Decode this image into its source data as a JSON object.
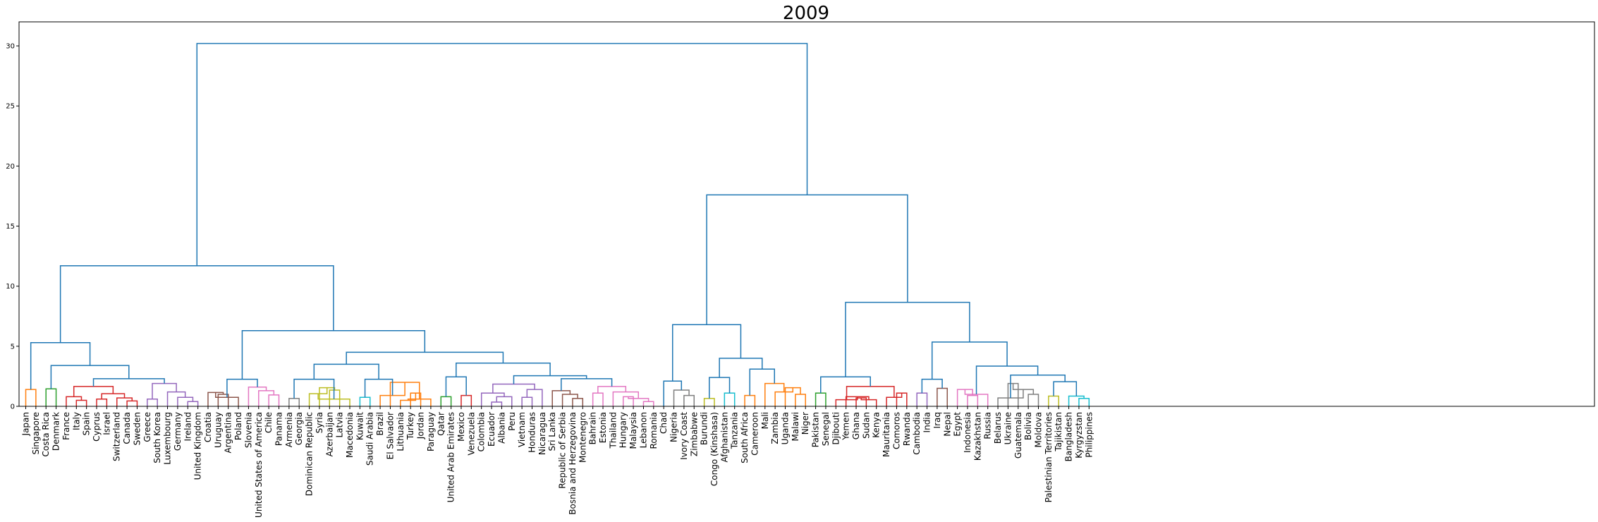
{
  "chart_data": {
    "type": "dendrogram",
    "title": "2009",
    "xlabel": "",
    "ylabel": "",
    "ylim": [
      0,
      32
    ],
    "yticks": [
      0,
      5,
      10,
      15,
      20,
      25,
      30
    ],
    "grid": false,
    "legend": "none",
    "leaves": [
      "Japan",
      "Singapore",
      "Costa Rica",
      "Denmark",
      "France",
      "Italy",
      "Spain",
      "Cyprus",
      "Israel",
      "Switzerland",
      "Canada",
      "Sweden",
      "Greece",
      "South Korea",
      "Luxembourg",
      "Germany",
      "Ireland",
      "United Kingdom",
      "Croatia",
      "Uruguay",
      "Argentina",
      "Poland",
      "Slovenia",
      "United States of America",
      "Chile",
      "Panama",
      "Armenia",
      "Georgia",
      "Dominican Republic",
      "Syria",
      "Azerbaijan",
      "Latvia",
      "Macedonia",
      "Kuwait",
      "Saudi Arabia",
      "Brazil",
      "El Salvador",
      "Lithuania",
      "Turkey",
      "Jordan",
      "Paraguay",
      "Qatar",
      "United Arab Emirates",
      "Mexico",
      "Venezuela",
      "Colombia",
      "Ecuador",
      "Albania",
      "Peru",
      "Vietnam",
      "Honduras",
      "Nicaragua",
      "Sri Lanka",
      "Republic of Serbia",
      "Bosnia and Herzegovina",
      "Montenegro",
      "Bahrain",
      "Estonia",
      "Thailand",
      "Hungary",
      "Malaysia",
      "Lebanon",
      "Romania",
      "Chad",
      "Nigeria",
      "Ivory Coast",
      "Zimbabwe",
      "Burundi",
      "Congo (Kinshasa)",
      "Afghanistan",
      "Tanzania",
      "South Africa",
      "Cameroon",
      "Mali",
      "Zambia",
      "Uganda",
      "Malawi",
      "Niger",
      "Pakistan",
      "Senegal",
      "Djibouti",
      "Yemen",
      "Ghana",
      "Sudan",
      "Kenya",
      "Mauritania",
      "Comoros",
      "Rwanda",
      "Cambodia",
      "India",
      "Iraq",
      "Nepal",
      "Egypt",
      "Indonesia",
      "Kazakhstan",
      "Russia",
      "Belarus",
      "Ukraine",
      "Guatemala",
      "Bolivia",
      "Moldova",
      "Palestinian Territories",
      "Tajikistan",
      "Bangladesh",
      "Kyrgyzstan",
      "Philippines"
    ],
    "colors": {
      "C0": "#1f77b4",
      "C1": "#ff7f0e",
      "C2": "#2ca02c",
      "C3": "#d62728",
      "C4": "#9467bd",
      "C5": "#8c564b",
      "C6": "#e377c2",
      "C7": "#7f7f7f",
      "C8": "#bcbd22",
      "C9": "#17becf"
    },
    "merges": [
      {
        "l": [
          "leaf",
          0
        ],
        "r": [
          "leaf",
          1
        ],
        "h": 1.4,
        "c": "C1"
      },
      {
        "l": [
          "leaf",
          2
        ],
        "r": [
          "leaf",
          3
        ],
        "h": 1.45,
        "c": "C2"
      },
      {
        "l": [
          "leaf",
          5
        ],
        "r": [
          "leaf",
          6
        ],
        "h": 0.5,
        "c": "C3"
      },
      {
        "l": [
          "leaf",
          4
        ],
        "r": [
          "m",
          2
        ],
        "h": 0.8,
        "c": "C3"
      },
      {
        "l": [
          "leaf",
          7
        ],
        "r": [
          "leaf",
          8
        ],
        "h": 0.6,
        "c": "C3"
      },
      {
        "l": [
          "leaf",
          10
        ],
        "r": [
          "leaf",
          11
        ],
        "h": 0.45,
        "c": "C3"
      },
      {
        "l": [
          "leaf",
          9
        ],
        "r": [
          "m",
          5
        ],
        "h": 0.7,
        "c": "C3"
      },
      {
        "l": [
          "m",
          4
        ],
        "r": [
          "m",
          6
        ],
        "h": 1.05,
        "c": "C3"
      },
      {
        "l": [
          "m",
          3
        ],
        "r": [
          "m",
          7
        ],
        "h": 1.65,
        "c": "C3"
      },
      {
        "l": [
          "leaf",
          12
        ],
        "r": [
          "leaf",
          13
        ],
        "h": 0.6,
        "c": "C4"
      },
      {
        "l": [
          "leaf",
          16
        ],
        "r": [
          "leaf",
          17
        ],
        "h": 0.4,
        "c": "C4"
      },
      {
        "l": [
          "leaf",
          15
        ],
        "r": [
          "m",
          10
        ],
        "h": 0.75,
        "c": "C4"
      },
      {
        "l": [
          "leaf",
          14
        ],
        "r": [
          "m",
          11
        ],
        "h": 1.2,
        "c": "C4"
      },
      {
        "l": [
          "m",
          9
        ],
        "r": [
          "m",
          12
        ],
        "h": 1.9,
        "c": "C4"
      },
      {
        "l": [
          "m",
          8
        ],
        "r": [
          "m",
          13
        ],
        "h": 2.3,
        "c": "C0"
      },
      {
        "l": [
          "m",
          1
        ],
        "r": [
          "m",
          14
        ],
        "h": 3.4,
        "c": "C0"
      },
      {
        "l": [
          "m",
          0
        ],
        "r": [
          "m",
          15
        ],
        "h": 5.3,
        "c": "C0"
      },
      {
        "l": [
          "leaf",
          19
        ],
        "r": [
          "leaf",
          20
        ],
        "h": 1.0,
        "c": "C5"
      },
      {
        "l": [
          "leaf",
          18
        ],
        "r": [
          "m",
          17
        ],
        "h": 1.15,
        "c": "C5"
      },
      {
        "l": [
          "m",
          18
        ],
        "r": [
          "leaf",
          21
        ],
        "h": 0.75,
        "c": "C5"
      },
      {
        "l": [
          "leaf",
          24
        ],
        "r": [
          "leaf",
          25
        ],
        "h": 0.95,
        "c": "C6"
      },
      {
        "l": [
          "leaf",
          23
        ],
        "r": [
          "m",
          20
        ],
        "h": 1.3,
        "c": "C6"
      },
      {
        "l": [
          "leaf",
          22
        ],
        "r": [
          "m",
          21
        ],
        "h": 1.6,
        "c": "C6"
      },
      {
        "l": [
          "m",
          19
        ],
        "r": [
          "m",
          22
        ],
        "h": 2.25,
        "c": "C0"
      },
      {
        "l": [
          "leaf",
          26
        ],
        "r": [
          "leaf",
          27
        ],
        "h": 0.65,
        "c": "C7"
      },
      {
        "l": [
          "leaf",
          30
        ],
        "r": [
          "leaf",
          31
        ],
        "h": 1.35,
        "c": "C8"
      },
      {
        "l": [
          "leaf",
          29
        ],
        "r": [
          "m",
          25
        ],
        "h": 1.55,
        "c": "C8"
      },
      {
        "l": [
          "leaf",
          28
        ],
        "r": [
          "m",
          26
        ],
        "h": 1.05,
        "c": "C8"
      },
      {
        "l": [
          "m",
          27
        ],
        "r": [
          "leaf",
          32
        ],
        "h": 0.6,
        "c": "C8"
      },
      {
        "l": [
          "m",
          24
        ],
        "r": [
          "m",
          28
        ],
        "h": 2.25,
        "c": "C0"
      },
      {
        "l": [
          "leaf",
          33
        ],
        "r": [
          "leaf",
          34
        ],
        "h": 0.75,
        "c": "C9"
      },
      {
        "l": [
          "leaf",
          38
        ],
        "r": [
          "leaf",
          39
        ],
        "h": 1.1,
        "c": "C1"
      },
      {
        "l": [
          "leaf",
          37
        ],
        "r": [
          "m",
          31
        ],
        "h": 0.5,
        "c": "C1"
      },
      {
        "l": [
          "m",
          32
        ],
        "r": [
          "leaf",
          40
        ],
        "h": 0.6,
        "c": "C1"
      },
      {
        "l": [
          "leaf",
          36
        ],
        "r": [
          "m",
          33
        ],
        "h": 2.0,
        "c": "C1"
      },
      {
        "l": [
          "leaf",
          35
        ],
        "r": [
          "m",
          34
        ],
        "h": 0.9,
        "c": "C1"
      },
      {
        "l": [
          "m",
          30
        ],
        "r": [
          "m",
          35
        ],
        "h": 2.25,
        "c": "C0"
      },
      {
        "l": [
          "m",
          29
        ],
        "r": [
          "m",
          36
        ],
        "h": 3.5,
        "c": "C0"
      },
      {
        "l": [
          "leaf",
          41
        ],
        "r": [
          "leaf",
          42
        ],
        "h": 0.8,
        "c": "C2"
      },
      {
        "l": [
          "leaf",
          43
        ],
        "r": [
          "leaf",
          44
        ],
        "h": 0.9,
        "c": "C3"
      },
      {
        "l": [
          "m",
          38
        ],
        "r": [
          "m",
          39
        ],
        "h": 2.45,
        "c": "C0"
      },
      {
        "l": [
          "leaf",
          46
        ],
        "r": [
          "leaf",
          47
        ],
        "h": 0.35,
        "c": "C4"
      },
      {
        "l": [
          "leaf",
          48
        ],
        "r": [
          "m",
          41
        ],
        "h": 0.8,
        "c": "C4"
      },
      {
        "l": [
          "leaf",
          45
        ],
        "r": [
          "m",
          42
        ],
        "h": 1.1,
        "c": "C4"
      },
      {
        "l": [
          "leaf",
          49
        ],
        "r": [
          "leaf",
          50
        ],
        "h": 0.75,
        "c": "C4"
      },
      {
        "l": [
          "m",
          44
        ],
        "r": [
          "leaf",
          51
        ],
        "h": 1.4,
        "c": "C4"
      },
      {
        "l": [
          "m",
          43
        ],
        "r": [
          "m",
          45
        ],
        "h": 1.85,
        "c": "C4"
      },
      {
        "l": [
          "leaf",
          54
        ],
        "r": [
          "leaf",
          55
        ],
        "h": 0.65,
        "c": "C5"
      },
      {
        "l": [
          "leaf",
          53
        ],
        "r": [
          "m",
          47
        ],
        "h": 1.0,
        "c": "C5"
      },
      {
        "l": [
          "leaf",
          52
        ],
        "r": [
          "m",
          48
        ],
        "h": 1.3,
        "c": "C5"
      },
      {
        "l": [
          "leaf",
          56
        ],
        "r": [
          "leaf",
          57
        ],
        "h": 1.1,
        "c": "C6"
      },
      {
        "l": [
          "leaf",
          59
        ],
        "r": [
          "leaf",
          60
        ],
        "h": 0.8,
        "c": "C6"
      },
      {
        "l": [
          "leaf",
          61
        ],
        "r": [
          "leaf",
          62
        ],
        "h": 0.4,
        "c": "C6"
      },
      {
        "l": [
          "m",
          51
        ],
        "r": [
          "m",
          52
        ],
        "h": 0.65,
        "c": "C6"
      },
      {
        "l": [
          "leaf",
          58
        ],
        "r": [
          "m",
          53
        ],
        "h": 1.2,
        "c": "C6"
      },
      {
        "l": [
          "m",
          50
        ],
        "r": [
          "m",
          54
        ],
        "h": 1.65,
        "c": "C6"
      },
      {
        "l": [
          "m",
          49
        ],
        "r": [
          "m",
          55
        ],
        "h": 2.3,
        "c": "C0"
      },
      {
        "l": [
          "m",
          46
        ],
        "r": [
          "m",
          56
        ],
        "h": 2.55,
        "c": "C0"
      },
      {
        "l": [
          "m",
          40
        ],
        "r": [
          "m",
          57
        ],
        "h": 3.6,
        "c": "C0"
      },
      {
        "l": [
          "m",
          37
        ],
        "r": [
          "m",
          58
        ],
        "h": 4.5,
        "c": "C0"
      },
      {
        "l": [
          "m",
          23
        ],
        "r": [
          "m",
          59
        ],
        "h": 6.3,
        "c": "C0"
      },
      {
        "l": [
          "m",
          16
        ],
        "r": [
          "m",
          60
        ],
        "h": 11.7,
        "c": "C0"
      },
      {
        "l": [
          "leaf",
          65
        ],
        "r": [
          "leaf",
          66
        ],
        "h": 0.9,
        "c": "C7"
      },
      {
        "l": [
          "leaf",
          64
        ],
        "r": [
          "m",
          62
        ],
        "h": 1.35,
        "c": "C7"
      },
      {
        "l": [
          "leaf",
          63
        ],
        "r": [
          "m",
          63
        ],
        "h": 2.1,
        "c": "C0"
      },
      {
        "l": [
          "leaf",
          67
        ],
        "r": [
          "leaf",
          68
        ],
        "h": 0.65,
        "c": "C8"
      },
      {
        "l": [
          "leaf",
          69
        ],
        "r": [
          "leaf",
          70
        ],
        "h": 1.1,
        "c": "C9"
      },
      {
        "l": [
          "m",
          65
        ],
        "r": [
          "m",
          66
        ],
        "h": 2.4,
        "c": "C0"
      },
      {
        "l": [
          "leaf",
          71
        ],
        "r": [
          "leaf",
          72
        ],
        "h": 0.9,
        "c": "C1"
      },
      {
        "l": [
          "leaf",
          76
        ],
        "r": [
          "leaf",
          77
        ],
        "h": 1.0,
        "c": "C1"
      },
      {
        "l": [
          "leaf",
          75
        ],
        "r": [
          "m",
          69
        ],
        "h": 1.55,
        "c": "C1"
      },
      {
        "l": [
          "leaf",
          74
        ],
        "r": [
          "m",
          70
        ],
        "h": 1.2,
        "c": "C1"
      },
      {
        "l": [
          "leaf",
          73
        ],
        "r": [
          "m",
          71
        ],
        "h": 1.9,
        "c": "C1"
      },
      {
        "l": [
          "m",
          68
        ],
        "r": [
          "m",
          72
        ],
        "h": 3.1,
        "c": "C0"
      },
      {
        "l": [
          "m",
          67
        ],
        "r": [
          "m",
          73
        ],
        "h": 4.0,
        "c": "C0"
      },
      {
        "l": [
          "m",
          64
        ],
        "r": [
          "m",
          74
        ],
        "h": 6.8,
        "c": "C0"
      },
      {
        "l": [
          "leaf",
          78
        ],
        "r": [
          "leaf",
          79
        ],
        "h": 1.1,
        "c": "C2"
      },
      {
        "l": [
          "leaf",
          82
        ],
        "r": [
          "leaf",
          83
        ],
        "h": 0.7,
        "c": "C3"
      },
      {
        "l": [
          "m",
          77
        ],
        "r": [
          "leaf",
          84
        ],
        "h": 0.55,
        "c": "C3"
      },
      {
        "l": [
          "leaf",
          81
        ],
        "r": [
          "m",
          78
        ],
        "h": 0.8,
        "c": "C3"
      },
      {
        "l": [
          "leaf",
          80
        ],
        "r": [
          "m",
          79
        ],
        "h": 0.55,
        "c": "C3"
      },
      {
        "l": [
          "leaf",
          86
        ],
        "r": [
          "leaf",
          87
        ],
        "h": 1.1,
        "c": "C3"
      },
      {
        "l": [
          "leaf",
          85
        ],
        "r": [
          "m",
          81
        ],
        "h": 0.75,
        "c": "C3"
      },
      {
        "l": [
          "m",
          80
        ],
        "r": [
          "m",
          82
        ],
        "h": 1.65,
        "c": "C3"
      },
      {
        "l": [
          "m",
          76
        ],
        "r": [
          "m",
          83
        ],
        "h": 2.45,
        "c": "C0"
      },
      {
        "l": [
          "leaf",
          88
        ],
        "r": [
          "leaf",
          89
        ],
        "h": 1.1,
        "c": "C4"
      },
      {
        "l": [
          "leaf",
          90
        ],
        "r": [
          "leaf",
          91
        ],
        "h": 1.5,
        "c": "C5"
      },
      {
        "l": [
          "m",
          85
        ],
        "r": [
          "m",
          86
        ],
        "h": 2.25,
        "c": "C0"
      },
      {
        "l": [
          "leaf",
          93
        ],
        "r": [
          "leaf",
          94
        ],
        "h": 0.9,
        "c": "C6"
      },
      {
        "l": [
          "leaf",
          92
        ],
        "r": [
          "m",
          88
        ],
        "h": 1.4,
        "c": "C6"
      },
      {
        "l": [
          "m",
          89
        ],
        "r": [
          "leaf",
          95
        ],
        "h": 1.0,
        "c": "C6"
      },
      {
        "l": [
          "leaf",
          97
        ],
        "r": [
          "leaf",
          98
        ],
        "h": 1.9,
        "c": "C7"
      },
      {
        "l": [
          "leaf",
          99
        ],
        "r": [
          "leaf",
          100
        ],
        "h": 1.0,
        "c": "C7"
      },
      {
        "l": [
          "m",
          91
        ],
        "r": [
          "m",
          92
        ],
        "h": 1.4,
        "c": "C7"
      },
      {
        "l": [
          "leaf",
          96
        ],
        "r": [
          "m",
          93
        ],
        "h": 0.7,
        "c": "C7"
      },
      {
        "l": [
          "leaf",
          101
        ],
        "r": [
          "leaf",
          102
        ],
        "h": 0.85,
        "c": "C8"
      },
      {
        "l": [
          "leaf",
          104
        ],
        "r": [
          "leaf",
          105
        ],
        "h": 0.65,
        "c": "C9"
      },
      {
        "l": [
          "leaf",
          103
        ],
        "r": [
          "m",
          96
        ],
        "h": 0.85,
        "c": "C9"
      },
      {
        "l": [
          "m",
          95
        ],
        "r": [
          "m",
          97
        ],
        "h": 2.05,
        "c": "C0"
      },
      {
        "l": [
          "m",
          94
        ],
        "r": [
          "m",
          98
        ],
        "h": 2.6,
        "c": "C0"
      },
      {
        "l": [
          "m",
          90
        ],
        "r": [
          "m",
          99
        ],
        "h": 3.35,
        "c": "C0"
      },
      {
        "l": [
          "m",
          87
        ],
        "r": [
          "m",
          100
        ],
        "h": 5.35,
        "c": "C0"
      },
      {
        "l": [
          "m",
          84
        ],
        "r": [
          "m",
          101
        ],
        "h": 8.65,
        "c": "C0"
      },
      {
        "l": [
          "m",
          75
        ],
        "r": [
          "m",
          102
        ],
        "h": 17.6,
        "c": "C0"
      },
      {
        "l": [
          "m",
          61
        ],
        "r": [
          "m",
          103
        ],
        "h": 30.2,
        "c": "C0"
      }
    ]
  }
}
